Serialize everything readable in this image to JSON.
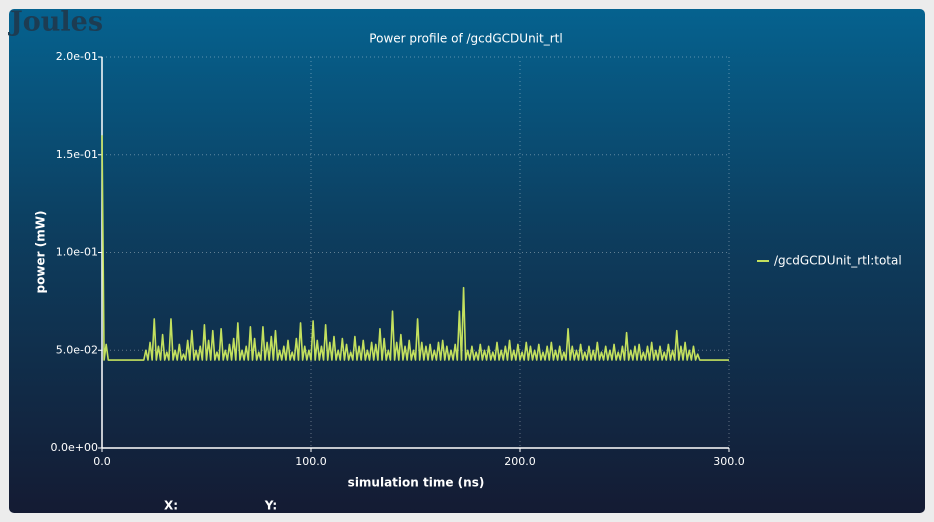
{
  "app": {
    "logo": "Joules",
    "cursor_x": "X:",
    "cursor_y": "Y:"
  },
  "chart_data": {
    "type": "line",
    "title": "Power profile of /gcdGCDUnit_rtl",
    "xlabel": "simulation time (ns)",
    "ylabel": "power (mW)",
    "legend": "right",
    "grid": true,
    "xlim": [
      0,
      300
    ],
    "ylim": [
      0,
      0.2
    ],
    "xticks": [
      {
        "value": 0,
        "label": "0.0"
      },
      {
        "value": 100,
        "label": "100.0"
      },
      {
        "value": 200,
        "label": "200.0"
      },
      {
        "value": 300,
        "label": "300.0"
      }
    ],
    "yticks": [
      {
        "value": 0,
        "label": "0.0e+00"
      },
      {
        "value": 0.05,
        "label": "5.0e-02"
      },
      {
        "value": 0.1,
        "label": "1.0e-01"
      },
      {
        "value": 0.15,
        "label": "1.5e-01"
      },
      {
        "value": 0.2,
        "label": "2.0e-01"
      }
    ],
    "x": [
      0,
      1,
      2,
      3,
      4,
      20,
      21,
      22,
      23,
      24,
      25,
      26,
      27,
      28,
      29,
      30,
      31,
      32,
      33,
      34,
      35,
      36,
      37,
      38,
      39,
      40,
      41,
      42,
      43,
      44,
      45,
      46,
      47,
      48,
      49,
      50,
      51,
      52,
      53,
      54,
      55,
      56,
      57,
      58,
      59,
      60,
      61,
      62,
      63,
      64,
      65,
      66,
      67,
      68,
      69,
      70,
      71,
      72,
      73,
      74,
      75,
      76,
      77,
      78,
      79,
      80,
      81,
      82,
      83,
      84,
      85,
      86,
      87,
      88,
      89,
      90,
      91,
      92,
      93,
      94,
      95,
      96,
      97,
      98,
      99,
      100,
      101,
      102,
      103,
      104,
      105,
      106,
      107,
      108,
      109,
      110,
      111,
      112,
      113,
      114,
      115,
      116,
      117,
      118,
      119,
      120,
      121,
      122,
      123,
      124,
      125,
      126,
      127,
      128,
      129,
      130,
      131,
      132,
      133,
      134,
      135,
      136,
      137,
      138,
      139,
      140,
      141,
      142,
      143,
      144,
      145,
      146,
      147,
      148,
      149,
      150,
      151,
      152,
      153,
      154,
      155,
      156,
      157,
      158,
      159,
      160,
      161,
      162,
      163,
      164,
      165,
      166,
      167,
      168,
      169,
      170,
      171,
      172,
      173,
      174,
      175,
      176,
      177,
      178,
      179,
      180,
      181,
      182,
      183,
      184,
      185,
      186,
      187,
      188,
      189,
      190,
      191,
      192,
      193,
      194,
      195,
      196,
      197,
      198,
      199,
      200,
      201,
      202,
      203,
      204,
      205,
      206,
      207,
      208,
      209,
      210,
      211,
      212,
      213,
      214,
      215,
      216,
      217,
      218,
      219,
      220,
      221,
      222,
      223,
      224,
      225,
      226,
      227,
      228,
      229,
      230,
      231,
      232,
      233,
      234,
      235,
      236,
      237,
      238,
      239,
      240,
      241,
      242,
      243,
      244,
      245,
      246,
      247,
      248,
      249,
      250,
      251,
      252,
      253,
      254,
      255,
      256,
      257,
      258,
      259,
      260,
      261,
      262,
      263,
      264,
      265,
      266,
      267,
      268,
      269,
      270,
      271,
      272,
      273,
      274,
      275,
      276,
      277,
      278,
      279,
      280,
      281,
      282,
      283,
      284,
      285,
      286,
      300
    ],
    "series": [
      {
        "name": "/gcdGCDUnit_rtl:total",
        "color": "#c3e05e",
        "values": [
          0.16,
          0.045,
          0.053,
          0.045,
          0.045,
          0.045,
          0.05,
          0.045,
          0.054,
          0.045,
          0.066,
          0.045,
          0.052,
          0.045,
          0.058,
          0.045,
          0.049,
          0.045,
          0.066,
          0.045,
          0.05,
          0.045,
          0.053,
          0.045,
          0.048,
          0.045,
          0.055,
          0.045,
          0.06,
          0.045,
          0.05,
          0.045,
          0.052,
          0.045,
          0.063,
          0.045,
          0.055,
          0.045,
          0.06,
          0.045,
          0.049,
          0.045,
          0.061,
          0.045,
          0.05,
          0.045,
          0.053,
          0.045,
          0.056,
          0.045,
          0.064,
          0.045,
          0.05,
          0.045,
          0.052,
          0.045,
          0.062,
          0.045,
          0.056,
          0.045,
          0.049,
          0.045,
          0.062,
          0.045,
          0.054,
          0.045,
          0.057,
          0.045,
          0.06,
          0.045,
          0.05,
          0.045,
          0.052,
          0.045,
          0.055,
          0.045,
          0.049,
          0.045,
          0.056,
          0.045,
          0.064,
          0.045,
          0.052,
          0.045,
          0.05,
          0.045,
          0.065,
          0.045,
          0.055,
          0.045,
          0.052,
          0.045,
          0.063,
          0.045,
          0.054,
          0.045,
          0.057,
          0.045,
          0.05,
          0.045,
          0.056,
          0.045,
          0.053,
          0.045,
          0.049,
          0.045,
          0.057,
          0.045,
          0.052,
          0.045,
          0.055,
          0.045,
          0.05,
          0.045,
          0.054,
          0.045,
          0.053,
          0.045,
          0.061,
          0.045,
          0.056,
          0.045,
          0.05,
          0.045,
          0.07,
          0.045,
          0.054,
          0.045,
          0.058,
          0.045,
          0.052,
          0.045,
          0.055,
          0.045,
          0.05,
          0.045,
          0.066,
          0.045,
          0.054,
          0.045,
          0.052,
          0.045,
          0.053,
          0.045,
          0.05,
          0.045,
          0.054,
          0.045,
          0.055,
          0.045,
          0.052,
          0.045,
          0.05,
          0.045,
          0.053,
          0.045,
          0.07,
          0.045,
          0.082,
          0.045,
          0.05,
          0.045,
          0.052,
          0.045,
          0.049,
          0.045,
          0.053,
          0.045,
          0.05,
          0.045,
          0.052,
          0.045,
          0.049,
          0.045,
          0.054,
          0.045,
          0.05,
          0.045,
          0.052,
          0.045,
          0.055,
          0.045,
          0.05,
          0.045,
          0.053,
          0.045,
          0.049,
          0.045,
          0.054,
          0.045,
          0.052,
          0.045,
          0.05,
          0.045,
          0.053,
          0.045,
          0.049,
          0.045,
          0.052,
          0.045,
          0.054,
          0.045,
          0.05,
          0.045,
          0.052,
          0.045,
          0.049,
          0.045,
          0.061,
          0.045,
          0.052,
          0.045,
          0.05,
          0.045,
          0.053,
          0.045,
          0.049,
          0.045,
          0.052,
          0.045,
          0.05,
          0.045,
          0.054,
          0.045,
          0.049,
          0.045,
          0.052,
          0.045,
          0.05,
          0.045,
          0.053,
          0.045,
          0.049,
          0.045,
          0.052,
          0.045,
          0.059,
          0.045,
          0.05,
          0.045,
          0.052,
          0.045,
          0.053,
          0.045,
          0.049,
          0.045,
          0.052,
          0.045,
          0.054,
          0.045,
          0.05,
          0.045,
          0.052,
          0.045,
          0.049,
          0.045,
          0.053,
          0.045,
          0.05,
          0.045,
          0.06,
          0.045,
          0.052,
          0.045,
          0.054,
          0.045,
          0.05,
          0.045,
          0.052,
          0.045,
          0.048,
          0.045,
          0.045
        ]
      }
    ]
  }
}
